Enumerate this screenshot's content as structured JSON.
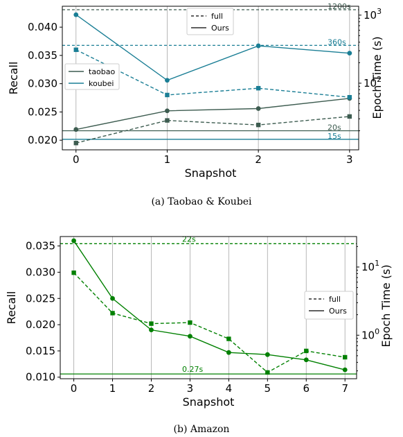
{
  "captions": [
    "(a)  Taobao & Koubei",
    "(b)  Amazon"
  ],
  "colors": {
    "taobao": "#3d5c50",
    "koubei": "#1a7e95",
    "amazon": "#008000"
  },
  "chart_data": [
    {
      "type": "line",
      "xlabel": "Snapshot",
      "ylabel": "Recall",
      "y2label": "Epoch Time (s)",
      "x": [
        0,
        1,
        2,
        3
      ],
      "xticks": [
        "0",
        "1",
        "2",
        "3"
      ],
      "xlim": [
        -0.15,
        3.1
      ],
      "ylim": [
        0.0183,
        0.0437
      ],
      "yticks": [
        "0.020",
        "0.025",
        "0.030",
        "0.035",
        "0.040"
      ],
      "ytick_values": [
        0.02,
        0.025,
        0.03,
        0.035,
        0.04
      ],
      "y2_scale": "log",
      "y2lim": [
        10.5,
        1350
      ],
      "y2ticks": [
        {
          "value": 100,
          "base": "10",
          "exp": "2"
        },
        {
          "value": 1000,
          "base": "10",
          "exp": "3"
        }
      ],
      "grid": "x",
      "series": [
        {
          "name": "taobao",
          "color_key": "taobao",
          "method": "full",
          "style": "dashed",
          "marker": "square",
          "values": [
            0.0195,
            0.0235,
            0.0227,
            0.0242
          ]
        },
        {
          "name": "taobao",
          "color_key": "taobao",
          "method": "Ours",
          "style": "solid",
          "marker": "circle",
          "values": [
            0.0219,
            0.0252,
            0.0256,
            0.0274
          ]
        },
        {
          "name": "koubei",
          "color_key": "koubei",
          "method": "full",
          "style": "dashed",
          "marker": "square",
          "values": [
            0.036,
            0.028,
            0.0292,
            0.0276
          ]
        },
        {
          "name": "koubei",
          "color_key": "koubei",
          "method": "Ours",
          "style": "solid",
          "marker": "circle",
          "values": [
            0.0422,
            0.0306,
            0.0367,
            0.0354
          ]
        }
      ],
      "time_lines": [
        {
          "label": "1200s",
          "seconds": 1200,
          "style": "dashed",
          "color_key": "taobao"
        },
        {
          "label": "360s",
          "seconds": 360,
          "style": "dashed",
          "color_key": "koubei"
        },
        {
          "label": "20s",
          "seconds": 20,
          "style": "solid",
          "color_key": "taobao"
        },
        {
          "label": "15s",
          "seconds": 15,
          "style": "solid",
          "color_key": "koubei"
        }
      ],
      "legend_methods": {
        "position": "top-center",
        "entries": [
          {
            "label": "full",
            "style": "dashed"
          },
          {
            "label": "Ours",
            "style": "solid"
          }
        ]
      },
      "legend_datasets": {
        "position": "center-left",
        "entries": [
          {
            "label": "taobao",
            "color_key": "taobao"
          },
          {
            "label": "koubei",
            "color_key": "koubei"
          }
        ]
      }
    },
    {
      "type": "line",
      "xlabel": "Snapshot",
      "ylabel": "Recall",
      "y2label": "Epoch Time (s)",
      "x": [
        0,
        1,
        2,
        3,
        4,
        5,
        6,
        7
      ],
      "xticks": [
        "0",
        "1",
        "2",
        "3",
        "4",
        "5",
        "6",
        "7"
      ],
      "xlim": [
        -0.35,
        7.3
      ],
      "ylim": [
        0.0097,
        0.0368
      ],
      "yticks": [
        "0.010",
        "0.015",
        "0.020",
        "0.025",
        "0.030",
        "0.035"
      ],
      "ytick_values": [
        0.01,
        0.015,
        0.02,
        0.025,
        0.03,
        0.035
      ],
      "y2_scale": "log",
      "y2lim": [
        0.23,
        28
      ],
      "y2ticks": [
        {
          "value": 1,
          "base": "10",
          "exp": "0"
        },
        {
          "value": 10,
          "base": "10",
          "exp": "1"
        }
      ],
      "grid": "x",
      "series": [
        {
          "name": "amazon",
          "color_key": "amazon",
          "method": "full",
          "style": "dashed",
          "marker": "square",
          "values": [
            0.0299,
            0.0222,
            0.0202,
            0.0204,
            0.0173,
            0.0109,
            0.015,
            0.0138
          ]
        },
        {
          "name": "amazon",
          "color_key": "amazon",
          "method": "Ours",
          "style": "solid",
          "marker": "circle",
          "values": [
            0.036,
            0.025,
            0.019,
            0.0178,
            0.0147,
            0.0143,
            0.0133,
            0.0114
          ]
        }
      ],
      "time_lines": [
        {
          "label": "22s",
          "seconds": 22,
          "style": "dashed",
          "color_key": "amazon"
        },
        {
          "label": "0.27s",
          "seconds": 0.27,
          "style": "solid",
          "color_key": "amazon"
        }
      ],
      "legend_methods": {
        "position": "center-right",
        "entries": [
          {
            "label": "full",
            "style": "dashed"
          },
          {
            "label": "Ours",
            "style": "solid"
          }
        ]
      }
    }
  ]
}
